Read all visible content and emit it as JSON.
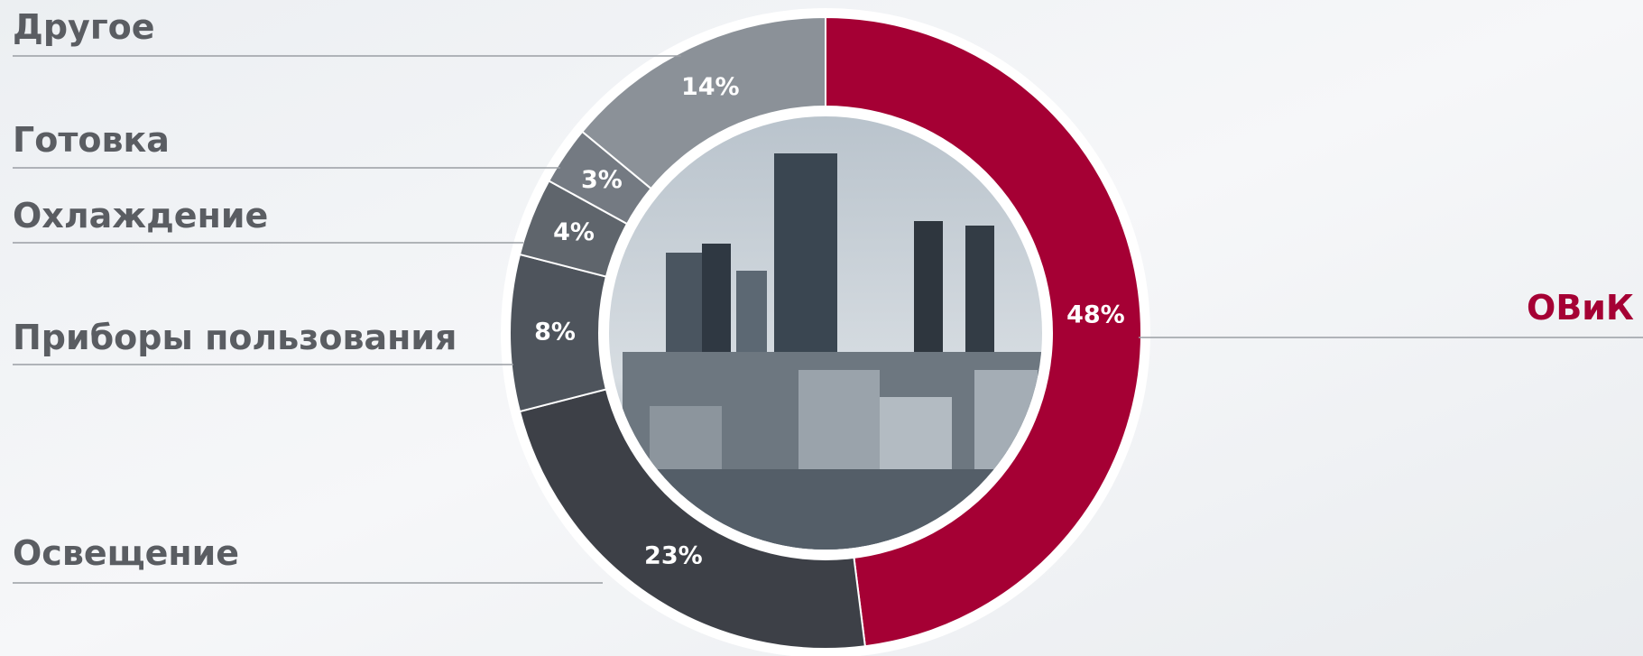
{
  "chart_data": {
    "type": "pie",
    "categories": [
      "ОВиК",
      "Освещение",
      "Приборы пользования",
      "Охлаждение",
      "Готовка",
      "Другое"
    ],
    "values": [
      48,
      23,
      8,
      4,
      3,
      14
    ],
    "value_labels": [
      "48%",
      "23%",
      "8%",
      "4%",
      "3%",
      "14%"
    ],
    "colors": [
      "#a50034",
      "#3d4047",
      "#4e545c",
      "#5f656c",
      "#747a82",
      "#8b9198"
    ]
  }
}
